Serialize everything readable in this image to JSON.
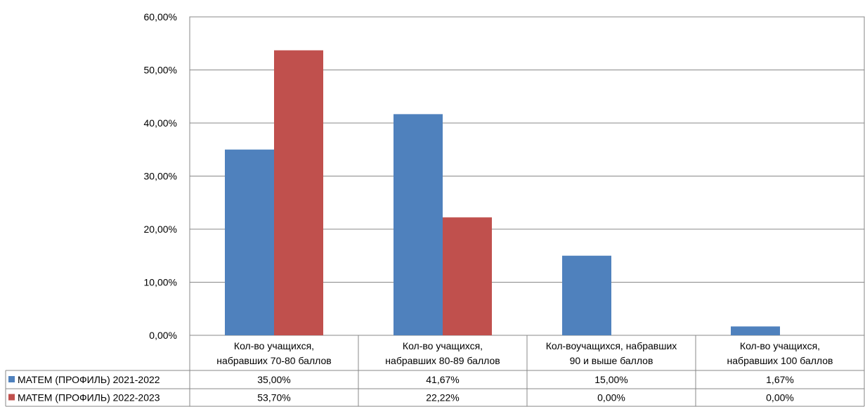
{
  "chart_data": {
    "type": "bar",
    "categories": [
      [
        "Кол-во учащихся,",
        "набравших 70-80 баллов"
      ],
      [
        "Кол-во учащихся,",
        "набравших 80-89 баллов"
      ],
      [
        "Кол-воучащихся, набравших",
        "90 и выше баллов"
      ],
      [
        "Кол-во учащихся,",
        "набравших 100 баллов"
      ]
    ],
    "series": [
      {
        "name": "МАТЕМ (ПРОФИЛЬ) 2021-2022",
        "values": [
          35.0,
          41.67,
          15.0,
          1.67
        ],
        "labels": [
          "35,00%",
          "41,67%",
          "15,00%",
          "1,67%"
        ],
        "color": "#4F81BD"
      },
      {
        "name": "МАТЕМ (ПРОФИЛЬ) 2022-2023",
        "values": [
          53.7,
          22.22,
          0.0,
          0.0
        ],
        "labels": [
          "53,70%",
          "22,22%",
          "0,00%",
          "0,00%"
        ],
        "color": "#C0504D"
      }
    ],
    "ylim": [
      0,
      60
    ],
    "yticks": [
      "0,00%",
      "10,00%",
      "20,00%",
      "30,00%",
      "40,00%",
      "50,00%",
      "60,00%"
    ],
    "grid": true,
    "legend": "data-table"
  }
}
